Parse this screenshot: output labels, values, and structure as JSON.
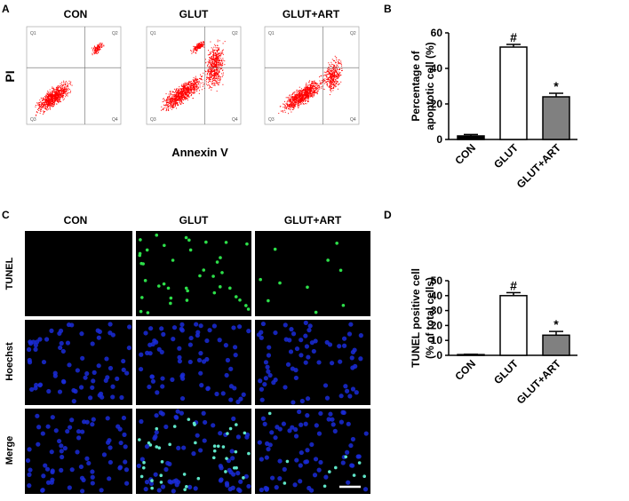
{
  "panel_labels": [
    "A",
    "B",
    "C",
    "D"
  ],
  "flow": {
    "titles": [
      "CON",
      "GLUT",
      "GLUT+ART"
    ],
    "ylabel": "PI",
    "xlabel": "Annexin V",
    "quadrants": [
      "Q1",
      "Q2",
      "Q3",
      "Q4"
    ]
  },
  "microscopy": {
    "titles": [
      "CON",
      "GLUT",
      "GLUT+ART"
    ],
    "rows": [
      "TUNEL",
      "Hoechst",
      "Merge"
    ]
  },
  "chart_data": [
    {
      "type": "bar",
      "categories": [
        "CON",
        "GLUT",
        "GLUT+ART"
      ],
      "values": [
        2,
        52,
        24
      ],
      "errors": [
        0.8,
        1.5,
        2
      ],
      "colors": [
        "#000000",
        "#ffffff",
        "#808080"
      ],
      "ylabel": [
        "Percentage of",
        "apoptotic cell (%)"
      ],
      "ylim": [
        0,
        60
      ],
      "yticks": [
        0,
        20,
        40,
        60
      ],
      "annotations": [
        null,
        "#",
        "*"
      ]
    },
    {
      "type": "bar",
      "categories": [
        "CON",
        "GLUT",
        "GLUT+ART"
      ],
      "values": [
        0.5,
        40,
        13.5
      ],
      "errors": [
        0.2,
        2,
        2.5
      ],
      "colors": [
        "#000000",
        "#ffffff",
        "#808080"
      ],
      "ylabel": [
        "TUNEL positive cell",
        "(% of total cells)"
      ],
      "ylim": [
        0,
        50
      ],
      "yticks": [
        0,
        10,
        20,
        30,
        40,
        50
      ],
      "annotations": [
        null,
        "#",
        "*"
      ]
    }
  ]
}
